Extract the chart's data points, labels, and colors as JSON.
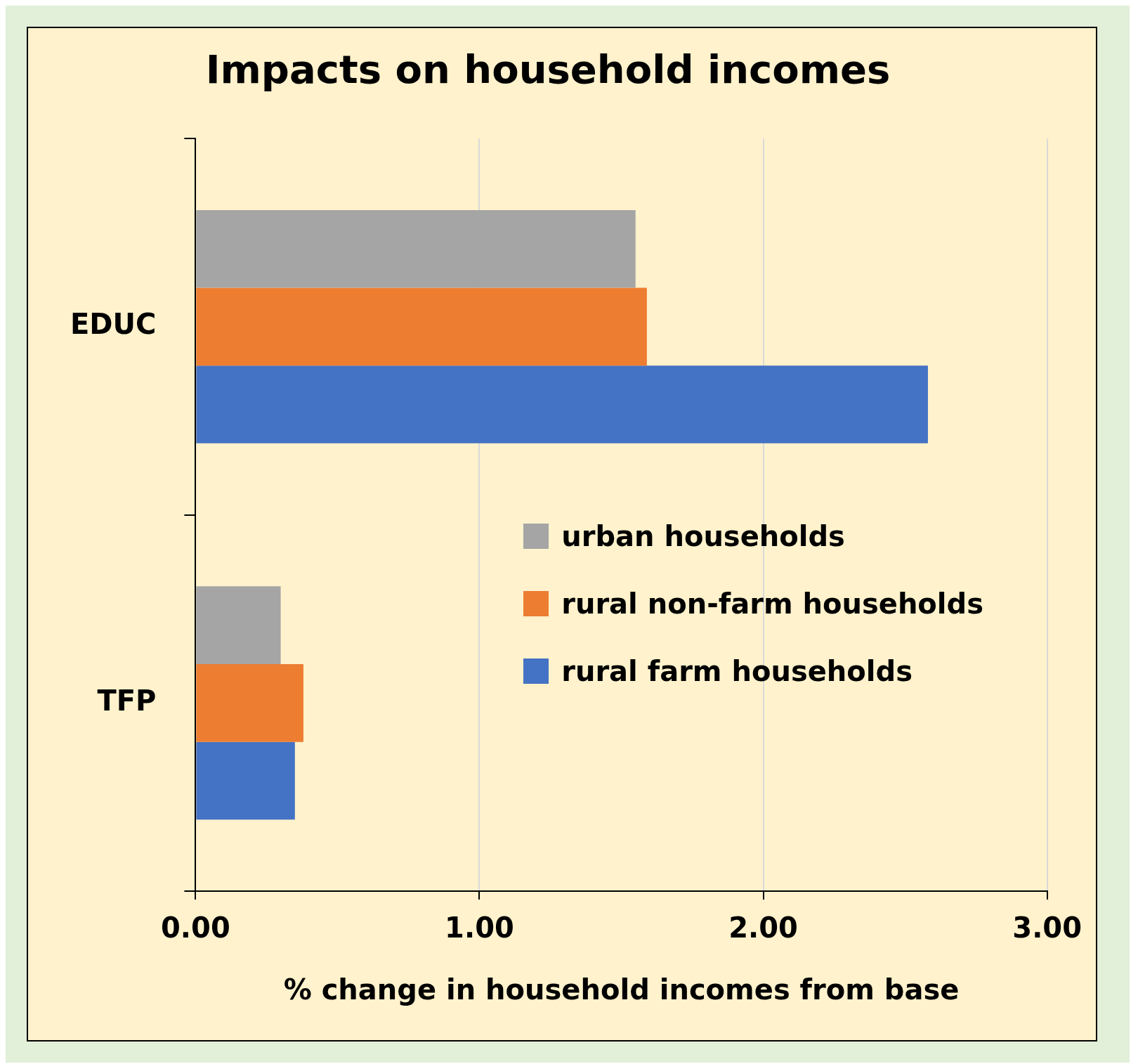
{
  "chart_data": {
    "type": "bar",
    "orientation": "horizontal",
    "title": "Impacts on household incomes",
    "xlabel": "% change in household incomes from base",
    "categories": [
      "EDUC",
      "TFP"
    ],
    "series": [
      {
        "name": "urban households",
        "color": "#a5a5a5",
        "values": [
          1.55,
          0.3
        ]
      },
      {
        "name": "rural non-farm households",
        "color": "#ed7d31",
        "values": [
          1.59,
          0.38
        ]
      },
      {
        "name": "rural farm households",
        "color": "#4472c4",
        "values": [
          2.58,
          0.35
        ]
      }
    ],
    "xlim": [
      0,
      3
    ],
    "xticks": [
      {
        "value": 0,
        "label": "0.00"
      },
      {
        "value": 1,
        "label": "1.00"
      },
      {
        "value": 2,
        "label": "2.00"
      },
      {
        "value": 3,
        "label": "3.00"
      }
    ],
    "grid": "x",
    "legend": "right"
  }
}
